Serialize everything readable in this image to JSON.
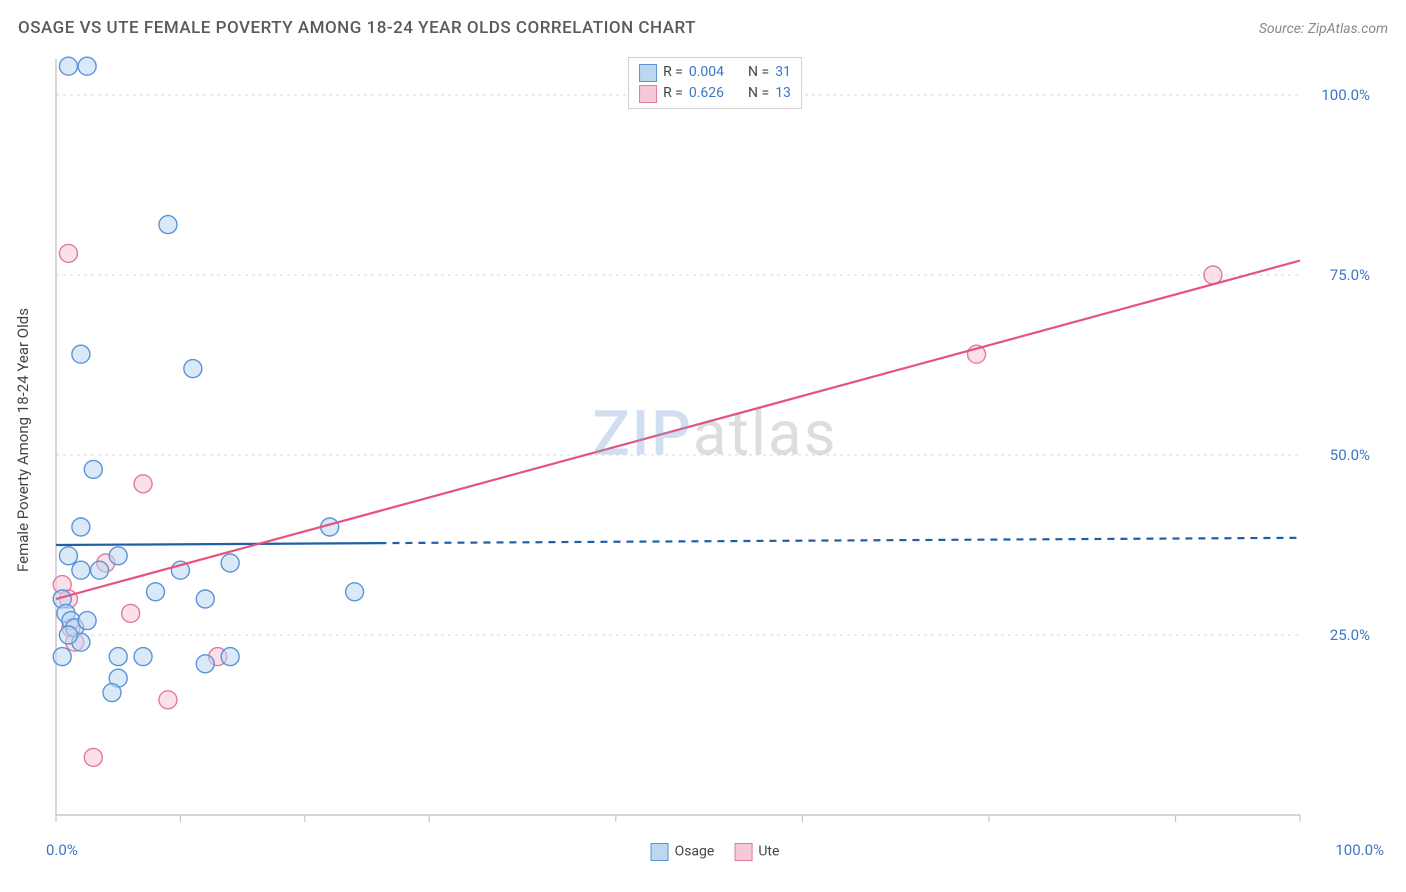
{
  "title": "OSAGE VS UTE FEMALE POVERTY AMONG 18-24 YEAR OLDS CORRELATION CHART",
  "source_label": "Source: ZipAtlas.com",
  "ylabel": "Female Poverty Among 18-24 Year Olds",
  "watermark_a": "ZIP",
  "watermark_b": "atlas",
  "axis": {
    "x0": "0.0%",
    "x100": "100.0%",
    "y_ticks": [
      25.0,
      50.0,
      75.0,
      100.0
    ],
    "y_tick_fmt": [
      "25.0%",
      "50.0%",
      "75.0%",
      "100.0%"
    ],
    "x_minor_ticks": [
      0,
      10,
      20,
      30,
      45,
      60,
      75,
      90,
      100
    ]
  },
  "colors": {
    "axis_text": "#3a77c7",
    "grid": "#d8d8d8",
    "axis_line": "#bcbcbc",
    "osage_fill": "#bcd7f2",
    "osage_stroke": "#5a94d4",
    "ute_fill": "#f5c9d7",
    "ute_stroke": "#e07ba0",
    "osage_line": "#1f5fa8",
    "ute_line": "#e6537f"
  },
  "legend_top": [
    {
      "series": "osage",
      "r_label": "R =",
      "r": "0.004",
      "n_label": "N =",
      "n": "31"
    },
    {
      "series": "ute",
      "r_label": "R =",
      "r": "0.626",
      "n_label": "N =",
      "n": "13"
    }
  ],
  "legend_bottom": [
    {
      "series": "osage",
      "label": "Osage"
    },
    {
      "series": "ute",
      "label": "Ute"
    }
  ],
  "chart": {
    "type": "scatter",
    "xlim": [
      0,
      100
    ],
    "ylim": [
      0,
      105
    ],
    "marker_radius": 9,
    "marker_opacity": 0.55,
    "line_width": 2.2,
    "background": "#ffffff",
    "series": {
      "osage": {
        "points": [
          [
            1.0,
            104.0
          ],
          [
            2.5,
            104.0
          ],
          [
            9.0,
            82.0
          ],
          [
            2.0,
            64.0
          ],
          [
            11.0,
            62.0
          ],
          [
            3.0,
            48.0
          ],
          [
            2.0,
            40.0
          ],
          [
            22.0,
            40.0
          ],
          [
            1.0,
            36.0
          ],
          [
            2.0,
            34.0
          ],
          [
            3.5,
            34.0
          ],
          [
            5.0,
            36.0
          ],
          [
            14.0,
            35.0
          ],
          [
            10.0,
            34.0
          ],
          [
            8.0,
            31.0
          ],
          [
            12.0,
            30.0
          ],
          [
            24.0,
            31.0
          ],
          [
            0.5,
            30.0
          ],
          [
            0.8,
            28.0
          ],
          [
            1.2,
            27.0
          ],
          [
            1.5,
            26.0
          ],
          [
            2.5,
            27.0
          ],
          [
            5.0,
            22.0
          ],
          [
            7.0,
            22.0
          ],
          [
            12.0,
            21.0
          ],
          [
            14.0,
            22.0
          ],
          [
            0.5,
            22.0
          ],
          [
            5.0,
            19.0
          ],
          [
            4.5,
            17.0
          ],
          [
            2.0,
            24.0
          ],
          [
            1.0,
            25.0
          ]
        ],
        "trend": {
          "y_at_x0": 37.5,
          "y_at_x100": 38.5,
          "solid_until_x": 26
        }
      },
      "ute": {
        "points": [
          [
            1.0,
            78.0
          ],
          [
            93.0,
            75.0
          ],
          [
            74.0,
            64.0
          ],
          [
            7.0,
            46.0
          ],
          [
            4.0,
            35.0
          ],
          [
            6.0,
            28.0
          ],
          [
            13.0,
            22.0
          ],
          [
            9.0,
            16.0
          ],
          [
            3.0,
            8.0
          ],
          [
            0.5,
            32.0
          ],
          [
            1.0,
            30.0
          ],
          [
            1.2,
            26.0
          ],
          [
            1.5,
            24.0
          ]
        ],
        "trend": {
          "y_at_x0": 30.0,
          "y_at_x100": 77.0,
          "solid_until_x": 100
        }
      }
    }
  }
}
